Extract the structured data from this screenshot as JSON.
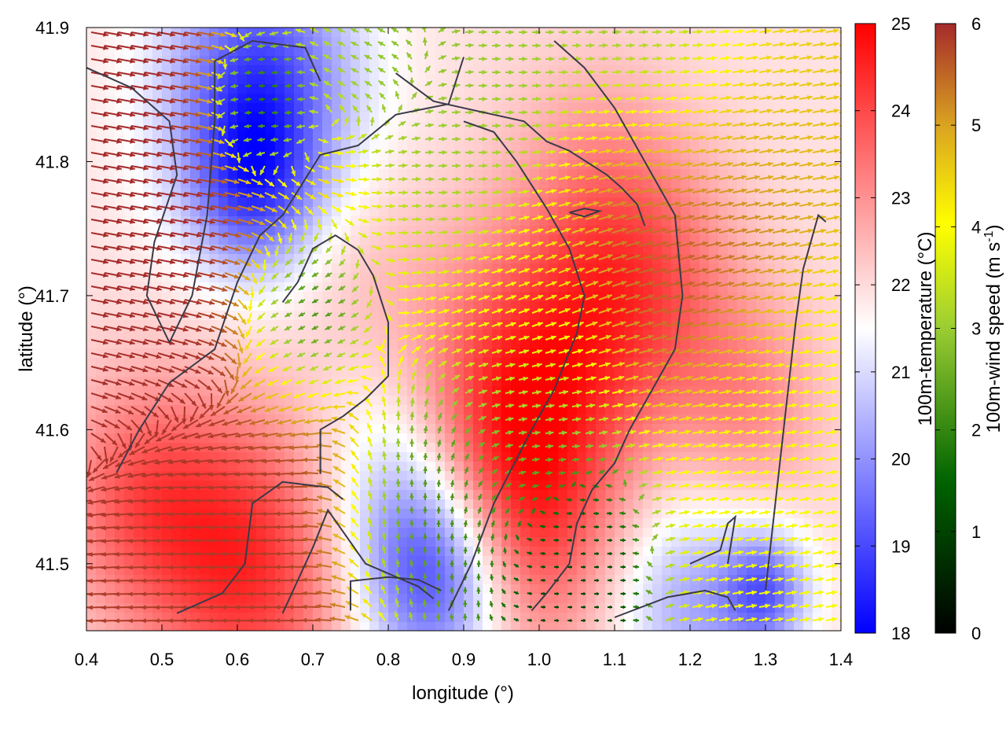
{
  "chart_data": {
    "type": "heatmap",
    "title": "",
    "xlabel": "longitude (°)",
    "ylabel": "latitude (°)",
    "xlim": [
      0.4,
      1.4
    ],
    "ylim": [
      41.45,
      41.9
    ],
    "xticks": [
      "0.4",
      "0.5",
      "0.6",
      "0.7",
      "0.8",
      "0.9",
      "1.0",
      "1.1",
      "1.2",
      "1.3",
      "1.4"
    ],
    "yticks": [
      "41.5",
      "41.6",
      "41.7",
      "41.8",
      "41.9"
    ],
    "grid": false,
    "temperature_colorbar": {
      "label": "100m-temperature (°C)",
      "range": [
        18,
        25
      ],
      "ticks": [
        "18",
        "19",
        "20",
        "21",
        "22",
        "23",
        "24",
        "25"
      ],
      "colors": [
        "#0000ff",
        "#ffffff",
        "#ff0000"
      ]
    },
    "wind_colorbar": {
      "label_main": "100m-wind speed (m s",
      "label_sup": "-1",
      "label_end": ")",
      "range": [
        0,
        6
      ],
      "ticks": [
        "0",
        "1",
        "2",
        "3",
        "4",
        "5",
        "6"
      ],
      "colors": [
        "#000000",
        "#006400",
        "#9acd32",
        "#ffff00",
        "#daa520",
        "#a52a2a"
      ]
    },
    "temperature_anomalies": [
      {
        "lon": 0.63,
        "lat": 41.86,
        "t": 19.0,
        "r": 0.09
      },
      {
        "lon": 0.62,
        "lat": 41.78,
        "t": 19.8,
        "r": 0.06
      },
      {
        "lon": 0.87,
        "lat": 41.49,
        "t": 18.6,
        "r": 0.07
      },
      {
        "lon": 0.8,
        "lat": 41.55,
        "t": 20.5,
        "r": 0.08
      },
      {
        "lon": 1.2,
        "lat": 41.47,
        "t": 20.3,
        "r": 0.07
      },
      {
        "lon": 1.3,
        "lat": 41.48,
        "t": 19.6,
        "r": 0.04
      },
      {
        "lon": 0.98,
        "lat": 41.63,
        "t": 24.3,
        "r": 0.1
      },
      {
        "lon": 0.96,
        "lat": 41.52,
        "t": 24.0,
        "r": 0.09
      },
      {
        "lon": 0.62,
        "lat": 41.5,
        "t": 24.4,
        "r": 0.1
      },
      {
        "lon": 0.47,
        "lat": 41.55,
        "t": 23.5,
        "r": 0.08
      },
      {
        "lon": 1.13,
        "lat": 41.71,
        "t": 23.8,
        "r": 0.09
      },
      {
        "lon": 1.07,
        "lat": 41.8,
        "t": 22.5,
        "r": 0.08
      },
      {
        "lon": 1.28,
        "lat": 41.62,
        "t": 23.0,
        "r": 0.07
      },
      {
        "lon": 0.77,
        "lat": 41.72,
        "t": 22.3,
        "r": 0.07
      }
    ],
    "wind_zones": [
      {
        "lon": 0.47,
        "lat": 41.72,
        "speed": 6.0,
        "dir": -10,
        "r": 0.14
      },
      {
        "lon": 0.55,
        "lat": 41.52,
        "speed": 5.8,
        "dir": 180,
        "r": 0.12
      },
      {
        "lon": 0.68,
        "lat": 41.69,
        "speed": 0.3,
        "dir": 200,
        "r": 0.05
      },
      {
        "lon": 0.63,
        "lat": 41.84,
        "speed": 0.3,
        "dir": 180,
        "r": 0.04
      },
      {
        "lon": 0.86,
        "lat": 41.54,
        "speed": 1.6,
        "dir": 90,
        "r": 0.06
      },
      {
        "lon": 0.99,
        "lat": 41.6,
        "speed": 2.0,
        "dir": 0,
        "r": 0.06
      },
      {
        "lon": 1.0,
        "lat": 41.69,
        "speed": 4.0,
        "dir": 25,
        "r": 0.07
      },
      {
        "lon": 1.05,
        "lat": 41.51,
        "speed": 0.8,
        "dir": 180,
        "r": 0.05
      },
      {
        "lon": 0.9,
        "lat": 41.83,
        "speed": 2.4,
        "dir": 0,
        "r": 0.08
      },
      {
        "lon": 1.18,
        "lat": 41.74,
        "speed": 6.0,
        "dir": 15,
        "r": 0.08
      },
      {
        "lon": 1.22,
        "lat": 41.82,
        "speed": 4.2,
        "dir": 10,
        "r": 0.08
      },
      {
        "lon": 1.3,
        "lat": 41.59,
        "speed": 3.5,
        "dir": 10,
        "r": 0.09
      },
      {
        "lon": 1.15,
        "lat": 41.88,
        "speed": 2.0,
        "dir": 0,
        "r": 0.06
      },
      {
        "lon": 0.8,
        "lat": 41.88,
        "speed": 2.2,
        "dir": 160,
        "r": 0.05
      }
    ],
    "contours": [
      [
        [
          0.4,
          41.87
        ],
        [
          0.46,
          41.855
        ],
        [
          0.51,
          41.83
        ],
        [
          0.52,
          41.79
        ],
        [
          0.49,
          41.74
        ],
        [
          0.48,
          41.7
        ],
        [
          0.51,
          41.665
        ],
        [
          0.54,
          41.7
        ],
        [
          0.56,
          41.76
        ],
        [
          0.57,
          41.83
        ],
        [
          0.57,
          41.875
        ],
        [
          0.62,
          41.89
        ],
        [
          0.69,
          41.885
        ],
        [
          0.71,
          41.86
        ]
      ],
      [
        [
          0.44,
          41.568
        ],
        [
          0.47,
          41.6
        ],
        [
          0.51,
          41.635
        ],
        [
          0.57,
          41.66
        ],
        [
          0.6,
          41.71
        ],
        [
          0.63,
          41.745
        ],
        [
          0.66,
          41.76
        ],
        [
          0.71,
          41.805
        ],
        [
          0.76,
          41.812
        ],
        [
          0.81,
          41.835
        ],
        [
          0.88,
          41.843
        ],
        [
          0.9,
          41.878
        ]
      ],
      [
        [
          0.52,
          41.463
        ],
        [
          0.58,
          41.478
        ],
        [
          0.61,
          41.5
        ],
        [
          0.62,
          41.545
        ],
        [
          0.66,
          41.561
        ],
        [
          0.72,
          41.557
        ],
        [
          0.74,
          41.548
        ]
      ],
      [
        [
          0.66,
          41.463
        ],
        [
          0.7,
          41.512
        ],
        [
          0.72,
          41.54
        ],
        [
          0.77,
          41.5
        ],
        [
          0.84,
          41.483
        ],
        [
          0.86,
          41.474
        ]
      ],
      [
        [
          0.75,
          41.465
        ],
        [
          0.75,
          41.487
        ],
        [
          0.8,
          41.49
        ],
        [
          0.84,
          41.488
        ],
        [
          0.87,
          41.48
        ]
      ],
      [
        [
          0.71,
          41.567
        ],
        [
          0.71,
          41.6
        ],
        [
          0.74,
          41.61
        ],
        [
          0.77,
          41.623
        ],
        [
          0.8,
          41.64
        ],
        [
          0.8,
          41.68
        ],
        [
          0.78,
          41.715
        ],
        [
          0.76,
          41.734
        ],
        [
          0.73,
          41.745
        ],
        [
          0.7,
          41.735
        ],
        [
          0.68,
          41.71
        ],
        [
          0.66,
          41.695
        ]
      ],
      [
        [
          0.81,
          41.866
        ],
        [
          0.86,
          41.845
        ],
        [
          0.9,
          41.84
        ],
        [
          0.98,
          41.83
        ],
        [
          1.01,
          41.815
        ],
        [
          1.04,
          41.808
        ],
        [
          1.09,
          41.79
        ],
        [
          1.11,
          41.78
        ],
        [
          1.13,
          41.768
        ],
        [
          1.14,
          41.752
        ]
      ],
      [
        [
          0.88,
          41.465
        ],
        [
          0.91,
          41.5
        ],
        [
          0.94,
          41.545
        ],
        [
          0.99,
          41.6
        ],
        [
          1.02,
          41.63
        ],
        [
          1.05,
          41.672
        ],
        [
          1.06,
          41.7
        ],
        [
          1.04,
          41.735
        ],
        [
          1.01,
          41.765
        ],
        [
          0.97,
          41.8
        ],
        [
          0.94,
          41.822
        ],
        [
          0.9,
          41.83
        ]
      ],
      [
        [
          0.99,
          41.465
        ],
        [
          1.01,
          41.478
        ],
        [
          1.04,
          41.5
        ],
        [
          1.05,
          41.53
        ],
        [
          1.07,
          41.555
        ],
        [
          1.1,
          41.575
        ],
        [
          1.12,
          41.6
        ],
        [
          1.15,
          41.63
        ],
        [
          1.18,
          41.66
        ],
        [
          1.19,
          41.7
        ],
        [
          1.18,
          41.76
        ],
        [
          1.15,
          41.79
        ],
        [
          1.1,
          41.84
        ],
        [
          1.06,
          41.87
        ],
        [
          1.02,
          41.89
        ]
      ],
      [
        [
          1.1,
          41.46
        ],
        [
          1.17,
          41.475
        ],
        [
          1.22,
          41.48
        ],
        [
          1.25,
          41.475
        ],
        [
          1.26,
          41.465
        ]
      ],
      [
        [
          1.2,
          41.5
        ],
        [
          1.24,
          41.51
        ],
        [
          1.25,
          41.53
        ],
        [
          1.26,
          41.535
        ],
        [
          1.25,
          41.5
        ]
      ],
      [
        [
          1.3,
          41.48
        ],
        [
          1.31,
          41.53
        ],
        [
          1.32,
          41.58
        ],
        [
          1.33,
          41.63
        ],
        [
          1.34,
          41.68
        ],
        [
          1.35,
          41.72
        ],
        [
          1.37,
          41.76
        ],
        [
          1.38,
          41.755
        ]
      ],
      [
        [
          1.04,
          41.762
        ],
        [
          1.06,
          41.765
        ],
        [
          1.08,
          41.763
        ],
        [
          1.06,
          41.759
        ],
        [
          1.04,
          41.762
        ]
      ]
    ]
  }
}
